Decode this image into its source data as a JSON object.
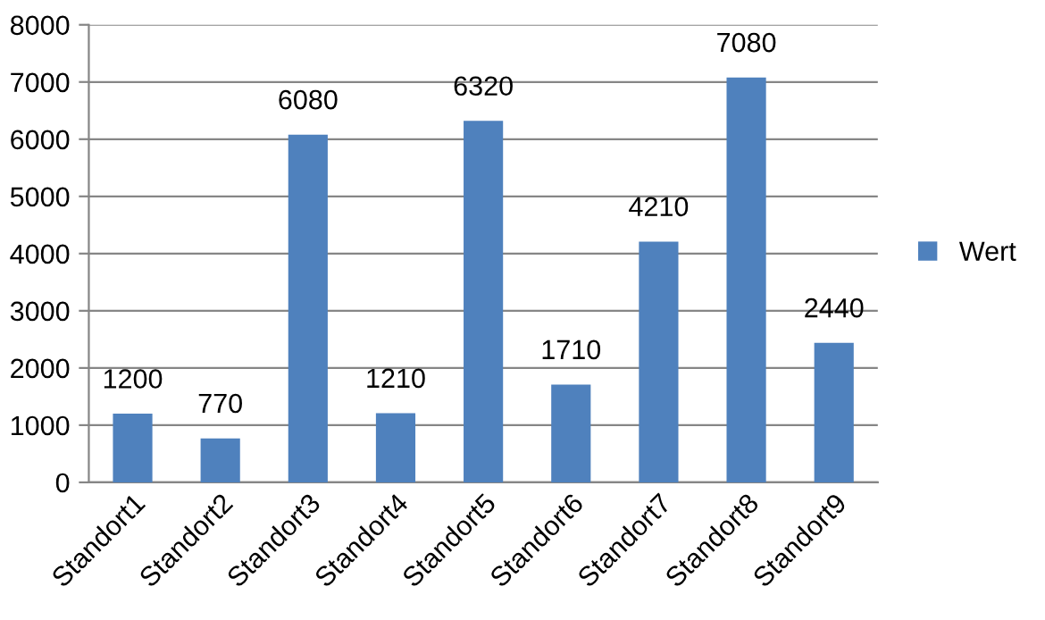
{
  "chart_data": {
    "type": "bar",
    "categories": [
      "Standort1",
      "Standort2",
      "Standort3",
      "Standort4",
      "Standort5",
      "Standort6",
      "Standort7",
      "Standort8",
      "Standort9"
    ],
    "series": [
      {
        "name": "Wert",
        "color": "#4f81bd",
        "values": [
          1200,
          770,
          6080,
          1210,
          6320,
          1710,
          4210,
          7080,
          2440
        ]
      }
    ],
    "ylim": [
      0,
      8000
    ],
    "yticks": [
      0,
      1000,
      2000,
      3000,
      4000,
      5000,
      6000,
      7000,
      8000
    ],
    "grid": "y",
    "legend": "right",
    "data_labels": true
  }
}
